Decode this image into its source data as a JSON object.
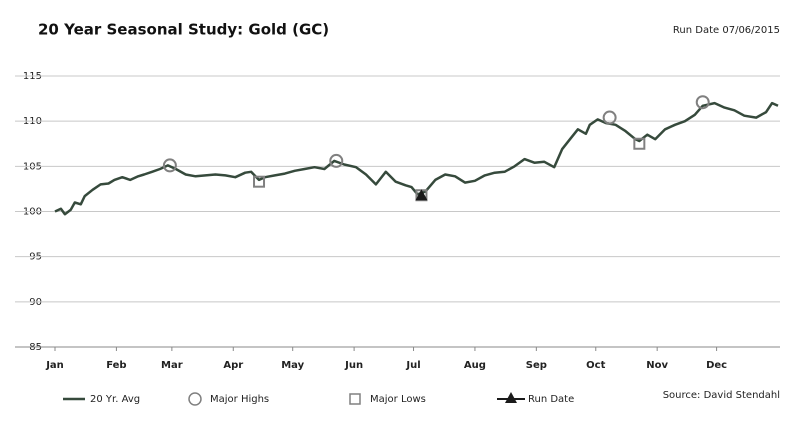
{
  "chart_data": {
    "type": "line",
    "title": "20 Year Seasonal Study: Gold (GC)",
    "run_date_label": "Run Date 07/06/2015",
    "source": "Source: David Stendahl",
    "xlim": [
      1,
      366
    ],
    "xticks": [
      {
        "value": 1,
        "label": "Jan"
      },
      {
        "value": 32,
        "label": "Feb"
      },
      {
        "value": 60,
        "label": "Mar"
      },
      {
        "value": 91,
        "label": "Apr"
      },
      {
        "value": 121,
        "label": "May"
      },
      {
        "value": 152,
        "label": "Jun"
      },
      {
        "value": 182,
        "label": "Jul"
      },
      {
        "value": 213,
        "label": "Aug"
      },
      {
        "value": 244,
        "label": "Sep"
      },
      {
        "value": 274,
        "label": "Oct"
      },
      {
        "value": 305,
        "label": "Nov"
      },
      {
        "value": 335,
        "label": "Dec"
      }
    ],
    "ylim": [
      85,
      115
    ],
    "yticks": [
      85,
      90,
      95,
      100,
      105,
      110,
      115
    ],
    "grid": true,
    "legend": "bottom",
    "series": [
      {
        "name": "20 Yr. Avg",
        "color": "#364a3c",
        "marker": "line",
        "x": [
          1,
          4,
          6,
          9,
          11,
          14,
          16,
          20,
          24,
          28,
          31,
          35,
          39,
          43,
          46,
          50,
          54,
          58,
          62,
          67,
          72,
          77,
          82,
          87,
          92,
          97,
          100,
          104,
          107,
          112,
          117,
          122,
          127,
          132,
          137,
          142,
          147,
          153,
          158,
          163,
          168,
          173,
          178,
          181,
          184,
          188,
          193,
          198,
          203,
          208,
          213,
          218,
          223,
          228,
          233,
          238,
          243,
          248,
          253,
          257,
          261,
          265,
          269,
          271,
          275,
          279,
          284,
          289,
          294,
          296,
          300,
          304,
          309,
          314,
          319,
          324,
          328,
          334,
          339,
          344,
          349,
          355,
          360,
          363,
          366
        ],
        "values": [
          100.0,
          100.3,
          99.7,
          100.2,
          101.0,
          100.8,
          101.7,
          102.4,
          103.0,
          103.1,
          103.5,
          103.8,
          103.5,
          103.9,
          104.1,
          104.4,
          104.7,
          105.1,
          104.7,
          104.1,
          103.9,
          104.0,
          104.1,
          104.0,
          103.8,
          104.3,
          104.4,
          103.5,
          103.8,
          104.0,
          104.2,
          104.5,
          104.7,
          104.9,
          104.7,
          105.6,
          105.2,
          104.9,
          104.1,
          103.0,
          104.4,
          103.3,
          102.9,
          102.7,
          101.9,
          102.2,
          103.5,
          104.1,
          103.9,
          103.2,
          103.4,
          104.0,
          104.3,
          104.4,
          105.0,
          105.8,
          105.4,
          105.5,
          104.9,
          106.9,
          108.0,
          109.1,
          108.6,
          109.6,
          110.2,
          109.8,
          109.6,
          108.9,
          108.0,
          107.8,
          108.5,
          108.0,
          109.1,
          109.6,
          110.0,
          110.7,
          111.7,
          112.0,
          111.5,
          111.2,
          110.6,
          110.4,
          111.0,
          112.0,
          111.7
        ]
      },
      {
        "name": "Major Highs",
        "color": "#808080",
        "marker": "circle",
        "x": [
          59,
          143,
          281,
          328
        ],
        "values": [
          105.1,
          105.6,
          110.4,
          112.1
        ]
      },
      {
        "name": "Major Lows",
        "color": "#808080",
        "marker": "square",
        "x": [
          104,
          186,
          296
        ],
        "values": [
          103.3,
          101.8,
          107.5
        ]
      },
      {
        "name": "Run Date",
        "color": "#1a1a1a",
        "marker": "triangle",
        "x": [
          186
        ],
        "values": [
          101.8
        ]
      }
    ]
  }
}
